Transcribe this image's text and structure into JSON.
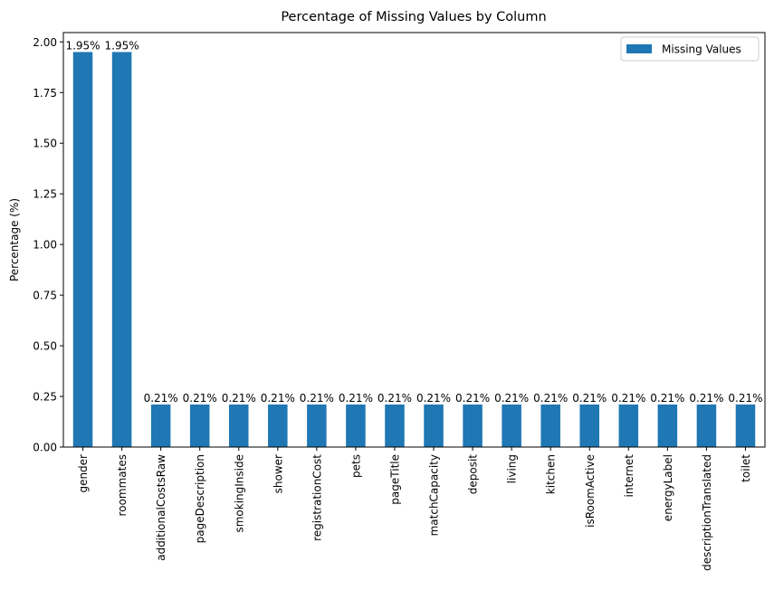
{
  "chart_data": {
    "type": "bar",
    "title": "Percentage of Missing Values by Column",
    "xlabel": "",
    "ylabel": "Percentage (%)",
    "ylim": [
      0,
      2.046
    ],
    "yticks": [
      "0.00",
      "0.25",
      "0.50",
      "0.75",
      "1.00",
      "1.25",
      "1.50",
      "1.75",
      "2.00"
    ],
    "ytick_values": [
      0,
      0.25,
      0.5,
      0.75,
      1.0,
      1.25,
      1.5,
      1.75,
      2.0
    ],
    "categories": [
      "gender",
      "roommates",
      "additionalCostsRaw",
      "pageDescription",
      "smokingInside",
      "shower",
      "registrationCost",
      "pets",
      "pageTitle",
      "matchCapacity",
      "deposit",
      "living",
      "kitchen",
      "isRoomActive",
      "internet",
      "energyLabel",
      "descriptionTranslated",
      "toilet"
    ],
    "series": [
      {
        "name": "Missing Values",
        "values": [
          1.95,
          1.95,
          0.21,
          0.21,
          0.21,
          0.21,
          0.21,
          0.21,
          0.21,
          0.21,
          0.21,
          0.21,
          0.21,
          0.21,
          0.21,
          0.21,
          0.21,
          0.21
        ],
        "labels": [
          "1.95%",
          "1.95%",
          "0.21%",
          "0.21%",
          "0.21%",
          "0.21%",
          "0.21%",
          "0.21%",
          "0.21%",
          "0.21%",
          "0.21%",
          "0.21%",
          "0.21%",
          "0.21%",
          "0.21%",
          "0.21%",
          "0.21%",
          "0.21%"
        ],
        "color": "#1f77b4"
      }
    ],
    "legend_position": "top-right",
    "grid": false
  }
}
